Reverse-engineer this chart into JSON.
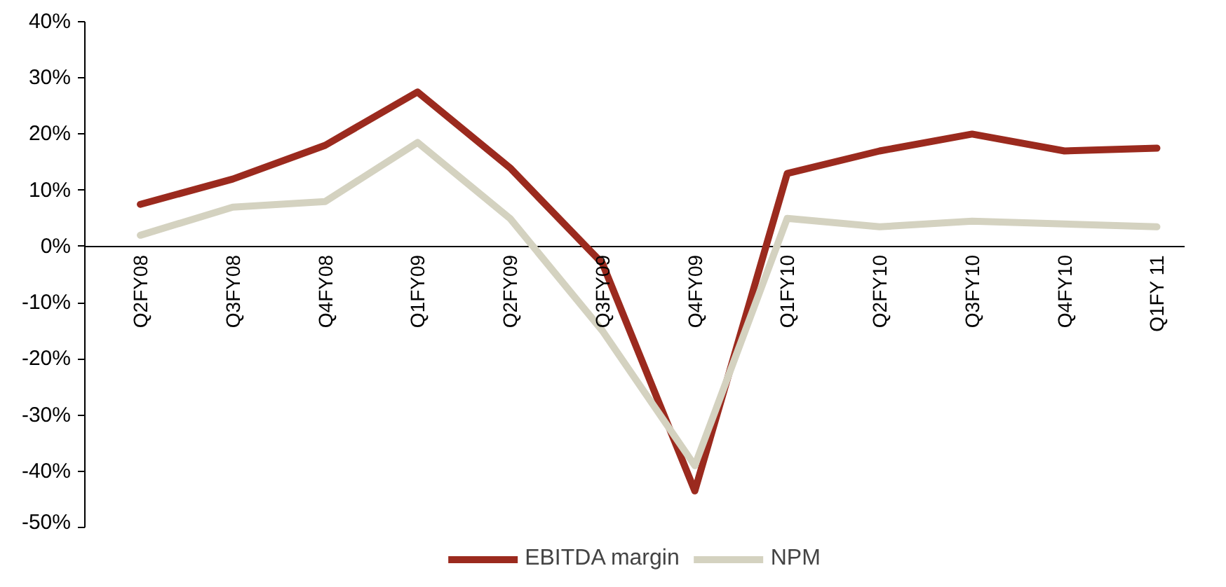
{
  "chart_data": {
    "type": "line",
    "categories": [
      "Q2FY08",
      "Q3FY08",
      "Q4FY08",
      "Q1FY09",
      "Q2FY09",
      "Q3FY09",
      "Q4FY09",
      "Q1FY10",
      "Q2FY10",
      "Q3FY10",
      "Q4FY10",
      "Q1FY 11"
    ],
    "series": [
      {
        "name": "EBITDA margin",
        "color": "#9b2a1e",
        "values": [
          7.5,
          12,
          18,
          27.5,
          14,
          -3,
          -43.5,
          13,
          17,
          20,
          17,
          17.5
        ]
      },
      {
        "name": "NPM",
        "color": "#d4d2c0",
        "values": [
          2,
          7,
          8,
          18.5,
          5,
          -15,
          -39,
          5,
          3.5,
          4.5,
          4,
          3.5
        ]
      }
    ],
    "ylim": [
      -50,
      40
    ],
    "yticks": [
      {
        "value": -50,
        "label": "-50%"
      },
      {
        "value": -40,
        "label": "-40%"
      },
      {
        "value": -30,
        "label": "-30%"
      },
      {
        "value": -20,
        "label": "-20%"
      },
      {
        "value": -10,
        "label": "-10%"
      },
      {
        "value": 0,
        "label": "0%"
      },
      {
        "value": 10,
        "label": "10%"
      },
      {
        "value": 20,
        "label": "20%"
      },
      {
        "value": 30,
        "label": "30%"
      },
      {
        "value": 40,
        "label": "40%"
      }
    ],
    "grid": false,
    "legend": "bottom",
    "line_style": "solid"
  }
}
